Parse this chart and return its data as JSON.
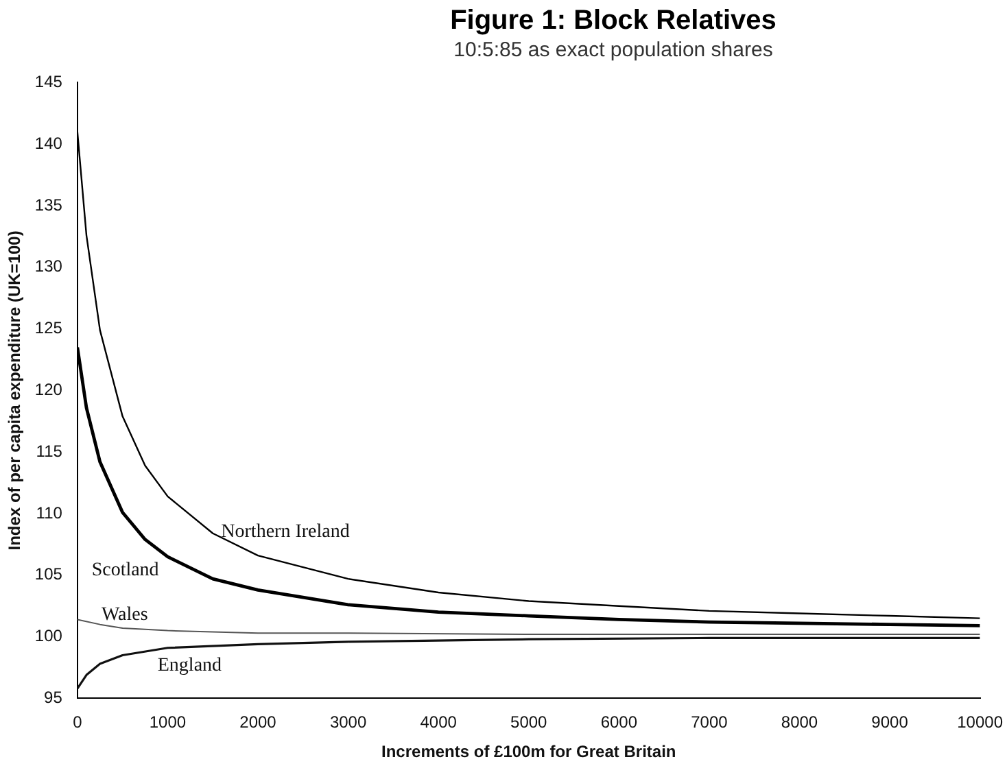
{
  "chart_data": {
    "type": "line",
    "title": "Figure 1: Block Relatives",
    "subtitle": "10:5:85 as exact population shares",
    "xlabel": "Increments of £100m for Great Britain",
    "ylabel": "Index of per capita expenditure (UK=100)",
    "xlim": [
      0,
      10000
    ],
    "xticks": [
      0,
      1000,
      2000,
      3000,
      4000,
      5000,
      6000,
      7000,
      8000,
      9000,
      10000
    ],
    "ylim": [
      95,
      145
    ],
    "yticks": [
      95,
      100,
      105,
      110,
      115,
      120,
      125,
      130,
      135,
      140,
      145
    ],
    "grid": false,
    "legend": false,
    "marker": "none",
    "line_style": "solid",
    "series": [
      {
        "name": "Northern Ireland",
        "color": "#000000",
        "x": [
          0,
          100,
          250,
          500,
          750,
          1000,
          1500,
          2000,
          3000,
          4000,
          5000,
          6000,
          7000,
          8000,
          9000,
          10000
        ],
        "values": [
          141,
          132.6,
          124.9,
          117.9,
          113.9,
          111.4,
          108.4,
          106.6,
          104.7,
          103.6,
          102.9,
          102.5,
          102.1,
          101.9,
          101.7,
          101.5
        ]
      },
      {
        "name": "Scotland",
        "color": "#000000",
        "x": [
          0,
          100,
          250,
          500,
          750,
          1000,
          1500,
          2000,
          3000,
          4000,
          5000,
          6000,
          7000,
          8000,
          9000,
          10000
        ],
        "values": [
          123.5,
          118.6,
          114.2,
          110.1,
          107.9,
          106.5,
          104.7,
          103.8,
          102.6,
          102,
          101.7,
          101.4,
          101.2,
          101.1,
          101,
          100.9
        ]
      },
      {
        "name": "Wales",
        "color": "#555555",
        "x": [
          0,
          250,
          500,
          1000,
          2000,
          3000,
          5000,
          7000,
          10000
        ],
        "values": [
          101.4,
          101,
          100.7,
          100.5,
          100.3,
          100.3,
          100.2,
          100.2,
          100.2
        ]
      },
      {
        "name": "England",
        "color": "#111111",
        "x": [
          0,
          100,
          250,
          500,
          1000,
          2000,
          3000,
          5000,
          7000,
          10000
        ],
        "values": [
          95.8,
          96.9,
          97.8,
          98.5,
          99.1,
          99.4,
          99.6,
          99.8,
          99.9,
          99.9
        ]
      }
    ]
  }
}
